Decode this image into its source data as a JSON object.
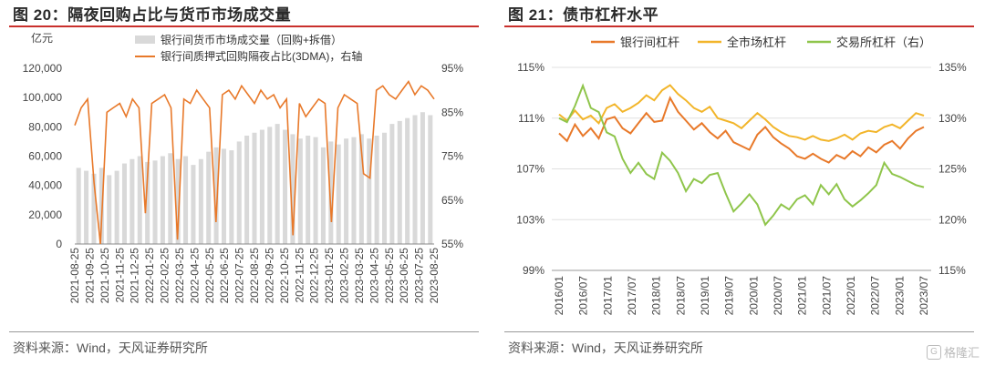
{
  "left": {
    "title": "图 20：隔夜回购占比与货币市场成交量",
    "source": "资料来源：Wind，天风证券研究所",
    "left_axis_unit": "亿元",
    "legend": {
      "bar": "银行间货币市场成交量（回购+拆借）",
      "line": "银行间质押式回购隔夜占比(3DMA)，右轴"
    },
    "colors": {
      "bar": "#d9d9d9",
      "line": "#e8792a"
    }
  },
  "right": {
    "title": "图 21：债市杠杆水平",
    "source": "资料来源：Wind，天风证券研究所",
    "legend": [
      "银行间杠杆",
      "全市场杠杆",
      "交易所杠杆（右）"
    ],
    "colors": [
      "#e8792a",
      "#f2b52a",
      "#8fc54b"
    ]
  },
  "watermark": "格隆汇",
  "chart_data": [
    {
      "type": "bar",
      "title": "隔夜回购占比与货币市场成交量",
      "y_unit": "亿元",
      "ylim": [
        0,
        120000
      ],
      "yticks": [
        "0",
        "20,000",
        "40,000",
        "60,000",
        "80,000",
        "100,000",
        "120,000"
      ],
      "y2lim": [
        55,
        95
      ],
      "y2ticks": [
        "55%",
        "65%",
        "75%",
        "85%",
        "95%"
      ],
      "x_ticks": [
        "2021-08-25",
        "2021-09-25",
        "2021-10-25",
        "2021-11-25",
        "2021-12-25",
        "2022-01-25",
        "2022-02-25",
        "2022-03-25",
        "2022-04-25",
        "2022-05-25",
        "2022-06-25",
        "2022-07-25",
        "2022-08-25",
        "2022-09-25",
        "2022-10-25",
        "2022-11-25",
        "2022-12-25",
        "2023-01-25",
        "2023-02-25",
        "2023-03-25",
        "2023-04-25",
        "2023-05-25",
        "2023-06-25",
        "2023-07-25",
        "2023-08-25"
      ],
      "series": [
        {
          "name": "银行间货币市场成交量（回购+拆借）",
          "kind": "bar",
          "values": [
            52000,
            50000,
            48000,
            52000,
            47000,
            50000,
            55000,
            58000,
            60000,
            56000,
            57000,
            60000,
            62000,
            58000,
            60000,
            54000,
            58000,
            63000,
            66000,
            65000,
            64000,
            70000,
            74000,
            76000,
            78000,
            80000,
            82000,
            78000,
            75000,
            72000,
            74000,
            73000,
            66000,
            70000,
            68000,
            72000,
            73000,
            75000,
            72000,
            74000,
            76000,
            82000,
            84000,
            86000,
            88000,
            90000,
            88000
          ]
        },
        {
          "name": "银行间质押式回购隔夜占比(3DMA)，右轴",
          "kind": "line",
          "axis": "right",
          "values": [
            82,
            86,
            88,
            69,
            54,
            85,
            86,
            87,
            84,
            88,
            86,
            62,
            87,
            88,
            89,
            86,
            56,
            88,
            87,
            90,
            88,
            86,
            60,
            89,
            90,
            88,
            91,
            89,
            87,
            90,
            88,
            89,
            86,
            88,
            57,
            87,
            84,
            86,
            88,
            87,
            60,
            86,
            89,
            88,
            87,
            71,
            70,
            90,
            91,
            89,
            88,
            90,
            92,
            89,
            91,
            90,
            88
          ]
        }
      ]
    },
    {
      "type": "line",
      "title": "债市杠杆水平",
      "ylim": [
        99,
        115
      ],
      "yticks": [
        "99%",
        "103%",
        "107%",
        "111%",
        "115%"
      ],
      "y2lim": [
        115,
        135
      ],
      "y2ticks": [
        "115%",
        "120%",
        "125%",
        "130%",
        "135%"
      ],
      "x_ticks": [
        "2016/01",
        "2016/07",
        "2017/01",
        "2017/07",
        "2018/01",
        "2018/07",
        "2019/01",
        "2019/07",
        "2020/01",
        "2020/07",
        "2021/01",
        "2021/07",
        "2022/01",
        "2022/07",
        "2023/01",
        "2023/07"
      ],
      "series": [
        {
          "name": "银行间杠杆",
          "axis": "left",
          "values": [
            109.8,
            109.2,
            110.5,
            109.6,
            110.2,
            109.4,
            110.9,
            111.1,
            110.2,
            109.8,
            110.6,
            111.4,
            110.7,
            110.8,
            112.6,
            111.5,
            110.8,
            110.1,
            110.6,
            109.9,
            109.4,
            110.0,
            109.1,
            108.8,
            108.5,
            109.7,
            110.3,
            109.5,
            109.0,
            108.6,
            108.0,
            107.8,
            108.2,
            107.8,
            107.5,
            108.1,
            107.8,
            108.4,
            108.0,
            108.7,
            108.3,
            108.9,
            109.2,
            108.6,
            109.4,
            110.0,
            110.3
          ]
        },
        {
          "name": "全市场杠杆",
          "axis": "left",
          "values": [
            111.3,
            110.8,
            111.6,
            110.9,
            111.2,
            110.6,
            111.8,
            112.1,
            111.5,
            111.8,
            112.2,
            112.8,
            112.4,
            113.2,
            113.6,
            112.9,
            112.4,
            111.8,
            111.5,
            111.9,
            111.0,
            110.8,
            110.6,
            110.2,
            110.8,
            111.4,
            110.9,
            110.3,
            109.9,
            109.6,
            109.5,
            109.3,
            109.6,
            109.3,
            109.2,
            109.4,
            109.7,
            109.3,
            109.8,
            110.0,
            109.9,
            110.3,
            110.5,
            110.2,
            110.8,
            111.4,
            111.2
          ]
        },
        {
          "name": "交易所杠杆（右）",
          "axis": "right",
          "values": [
            130.0,
            129.6,
            131.2,
            133.2,
            131.0,
            130.6,
            128.6,
            128.2,
            126.0,
            124.6,
            125.6,
            124.5,
            124.0,
            126.6,
            125.8,
            124.6,
            122.8,
            124.0,
            123.6,
            124.4,
            124.6,
            122.6,
            120.8,
            121.6,
            122.5,
            121.5,
            119.5,
            120.4,
            121.5,
            121.0,
            122.0,
            122.4,
            121.5,
            123.4,
            122.5,
            123.5,
            122.0,
            121.3,
            121.9,
            122.6,
            123.4,
            125.6,
            124.5,
            124.2,
            123.8,
            123.4,
            123.2
          ]
        }
      ]
    }
  ]
}
